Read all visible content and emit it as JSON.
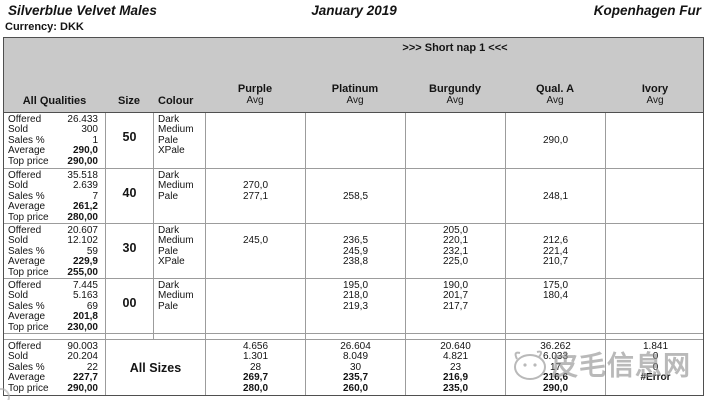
{
  "page": {
    "title_left": "Silverblue Velvet Males",
    "title_center": "January 2019",
    "title_right": "Kopenhagen Fur",
    "currency_label": "Currency: DKK",
    "section_banner": ">>> Short nap 1 <<<"
  },
  "theme": {
    "header_band": "#c9c9c9",
    "grid_line": "#9c9c9c",
    "outer_border": "#4f4f4f",
    "watermark_gray": "#8f8f8f"
  },
  "table": {
    "stats_header": "All Qualities",
    "size_header": "Size",
    "colour_header": "Colour",
    "avg_label": "Avg",
    "value_columns": [
      "Purple",
      "Platinum",
      "Burgundy",
      "Qual. A",
      "Ivory"
    ],
    "stat_labels": [
      "Offered",
      "Sold",
      "Sales %",
      "Average",
      "Top price"
    ],
    "groups": [
      {
        "size": "50",
        "stats": [
          "26.433",
          "300",
          "1",
          "290,0",
          "290,00"
        ],
        "colours": [
          "Dark",
          "Medium",
          "Pale",
          "XPale"
        ],
        "cols": [
          [
            "",
            "",
            "",
            ""
          ],
          [
            "",
            "",
            "",
            ""
          ],
          [
            "",
            "",
            "",
            ""
          ],
          [
            "",
            "",
            "290,0",
            ""
          ],
          [
            "",
            "",
            "",
            ""
          ]
        ]
      },
      {
        "size": "40",
        "stats": [
          "35.518",
          "2.639",
          "7",
          "261,2",
          "280,00"
        ],
        "colours": [
          "Dark",
          "Medium",
          "Pale"
        ],
        "cols": [
          [
            "",
            "270,0",
            "277,1"
          ],
          [
            "",
            "",
            "258,5"
          ],
          [
            "",
            "",
            ""
          ],
          [
            "",
            "",
            "248,1"
          ],
          [
            "",
            "",
            ""
          ]
        ]
      },
      {
        "size": "30",
        "stats": [
          "20.607",
          "12.102",
          "59",
          "229,9",
          "255,00"
        ],
        "colours": [
          "Dark",
          "Medium",
          "Pale",
          "XPale"
        ],
        "cols": [
          [
            "",
            "245,0",
            "",
            ""
          ],
          [
            "",
            "236,5",
            "245,9",
            "238,8"
          ],
          [
            "205,0",
            "220,1",
            "232,1",
            "225,0"
          ],
          [
            "",
            "212,6",
            "221,4",
            "210,7"
          ],
          [
            "",
            "",
            "",
            ""
          ]
        ]
      },
      {
        "size": "00",
        "stats": [
          "7.445",
          "5.163",
          "69",
          "201,8",
          "230,00"
        ],
        "colours": [
          "Dark",
          "Medium",
          "Pale"
        ],
        "cols": [
          [
            "",
            "",
            ""
          ],
          [
            "195,0",
            "218,0",
            "219,3"
          ],
          [
            "190,0",
            "201,7",
            "217,7"
          ],
          [
            "175,0",
            "180,4",
            ""
          ],
          [
            "",
            "",
            ""
          ]
        ]
      }
    ],
    "all_sizes": {
      "label": "All Sizes",
      "stats": [
        "90.003",
        "20.204",
        "22",
        "227,7",
        "290,00"
      ],
      "cols": [
        [
          "4.656",
          "1.301",
          "28",
          "269,7",
          "280,0"
        ],
        [
          "26.604",
          "8.049",
          "30",
          "235,7",
          "260,0"
        ],
        [
          "20.640",
          "4.821",
          "23",
          "216,9",
          "235,0"
        ],
        [
          "36.262",
          "6.033",
          "17",
          "216,6",
          "290,0"
        ],
        [
          "1.841",
          "0",
          "0",
          "#Error",
          ""
        ]
      ]
    }
  },
  "watermark": {
    "text": "皮毛信息网"
  }
}
